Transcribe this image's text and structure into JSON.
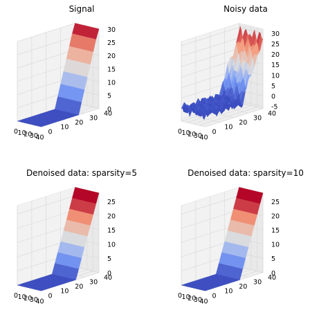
{
  "chart_data": [
    {
      "type": "surface",
      "title": "Signal",
      "kind": "clean",
      "x_ticks": [
        0,
        10,
        20,
        30,
        40
      ],
      "y_ticks": [
        0,
        10,
        20,
        30,
        40
      ],
      "z_ticks": [
        0,
        5,
        10,
        15,
        20,
        25,
        30
      ],
      "xlim": [
        0,
        40
      ],
      "ylim": [
        0,
        40
      ],
      "zlim": [
        0,
        30
      ],
      "colormap": "coolwarm",
      "grid": true
    },
    {
      "type": "surface",
      "title": "Noisy data",
      "kind": "noisy",
      "x_ticks": [
        0,
        10,
        20,
        30,
        40
      ],
      "y_ticks": [
        0,
        10,
        20,
        30,
        40
      ],
      "z_ticks": [
        -5,
        0,
        5,
        10,
        15,
        20,
        25,
        30
      ],
      "xlim": [
        0,
        40
      ],
      "ylim": [
        0,
        40
      ],
      "zlim": [
        -6,
        32
      ],
      "colormap": "coolwarm",
      "grid": true
    },
    {
      "type": "surface",
      "title": "Denoised data: sparsity=5",
      "kind": "denoised",
      "x_ticks": [
        0,
        10,
        20,
        30,
        40
      ],
      "y_ticks": [
        0,
        10,
        20,
        30,
        40
      ],
      "z_ticks": [
        0,
        5,
        10,
        15,
        20,
        25
      ],
      "xlim": [
        0,
        40
      ],
      "ylim": [
        0,
        40
      ],
      "zlim": [
        0,
        28
      ],
      "colormap": "coolwarm",
      "grid": true
    },
    {
      "type": "surface",
      "title": "Denoised data: sparsity=10",
      "kind": "denoised",
      "x_ticks": [
        0,
        10,
        20,
        30,
        40
      ],
      "y_ticks": [
        0,
        10,
        20,
        30,
        40
      ],
      "z_ticks": [
        0,
        5,
        10,
        15,
        20,
        25
      ],
      "xlim": [
        0,
        40
      ],
      "ylim": [
        0,
        40
      ],
      "zlim": [
        0,
        28
      ],
      "colormap": "coolwarm",
      "grid": true
    }
  ]
}
